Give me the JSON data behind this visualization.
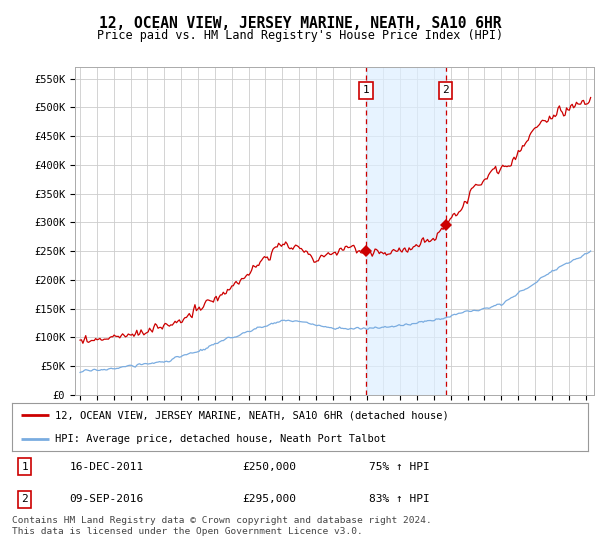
{
  "title": "12, OCEAN VIEW, JERSEY MARINE, NEATH, SA10 6HR",
  "subtitle": "Price paid vs. HM Land Registry's House Price Index (HPI)",
  "legend_line1": "12, OCEAN VIEW, JERSEY MARINE, NEATH, SA10 6HR (detached house)",
  "legend_line2": "HPI: Average price, detached house, Neath Port Talbot",
  "event1_date": "16-DEC-2011",
  "event1_price": "£250,000",
  "event1_hpi": "75% ↑ HPI",
  "event2_date": "09-SEP-2016",
  "event2_price": "£295,000",
  "event2_hpi": "83% ↑ HPI",
  "footer": "Contains HM Land Registry data © Crown copyright and database right 2024.\nThis data is licensed under the Open Government Licence v3.0.",
  "red_color": "#cc0000",
  "blue_color": "#7aace0",
  "event_box_color": "#cc0000",
  "bg_color": "#ffffff",
  "grid_color": "#cccccc",
  "ylim": [
    0,
    570000
  ],
  "yticks": [
    0,
    50000,
    100000,
    150000,
    200000,
    250000,
    300000,
    350000,
    400000,
    450000,
    500000,
    550000
  ],
  "ytick_labels": [
    "£0",
    "£50K",
    "£100K",
    "£150K",
    "£200K",
    "£250K",
    "£300K",
    "£350K",
    "£400K",
    "£450K",
    "£500K",
    "£550K"
  ],
  "event1_x": 2011.958,
  "event2_x": 2016.69,
  "event1_y": 250000,
  "event2_y": 295000,
  "shaded_color": "#ddeeff",
  "shaded_alpha": 0.7,
  "xmin": 1995.0,
  "xmax": 2025.3
}
